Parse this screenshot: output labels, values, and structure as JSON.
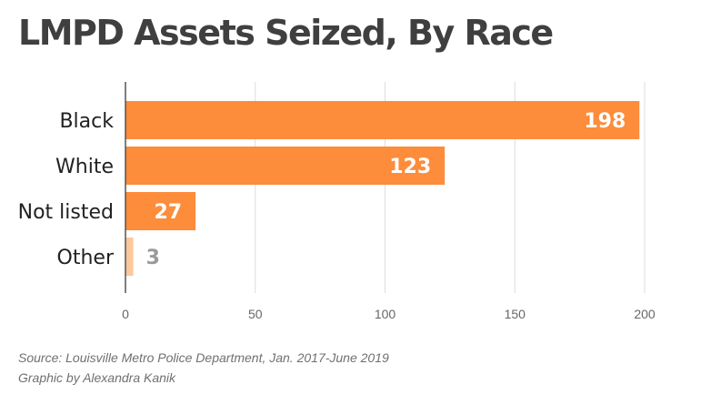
{
  "chart_data": {
    "type": "bar",
    "orientation": "horizontal",
    "title": "LMPD Assets Seized, By Race",
    "categories": [
      "Black",
      "White",
      "Not listed",
      "Other"
    ],
    "values": [
      198,
      123,
      27,
      3
    ],
    "xlim": [
      0,
      200
    ],
    "xticks": [
      0,
      50,
      100,
      150,
      200
    ],
    "grid": true,
    "colors": {
      "bar": "#fd8c3b",
      "bar_small": "#fdc79c",
      "label_inside": "#ffffff",
      "label_outside": "#9a9a9a",
      "grid": "#dddddd",
      "axis": "#555555"
    }
  },
  "footer": {
    "source": "Source: Louisville Metro Police Department, Jan. 2017-June 2019",
    "credit": "Graphic by Alexandra Kanik"
  }
}
